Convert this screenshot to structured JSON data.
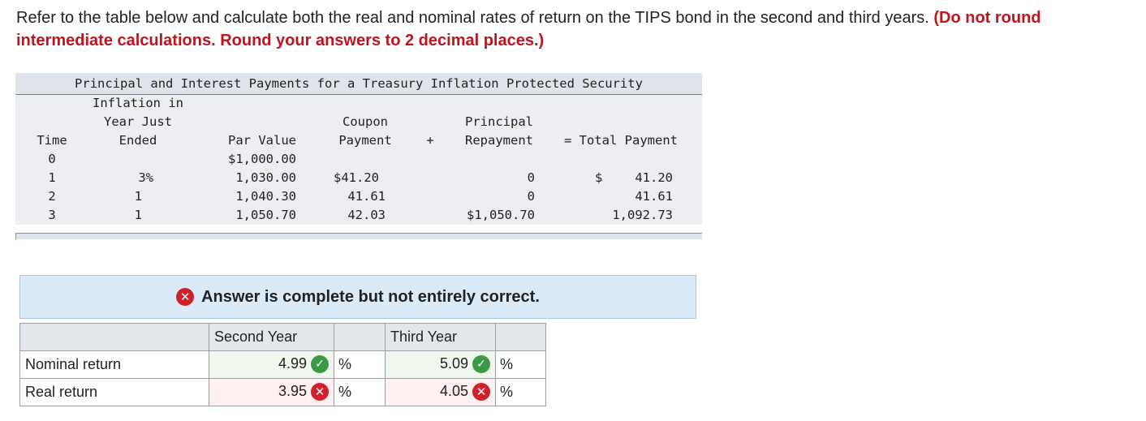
{
  "question": {
    "text": "Refer to the table below and calculate both the real and nominal rates of return on the TIPS bond in the second and third years.",
    "instruction": "(Do not round intermediate calculations. Round your answers to 2 decimal places.)"
  },
  "tips_table": {
    "title": "Principal and Interest Payments for a Treasury Inflation Protected Security",
    "headers": {
      "time": "Time",
      "inflation_1": "Inflation in",
      "inflation_2": "Year Just",
      "inflation_3": "Ended",
      "par": "Par Value",
      "coupon_1": "Coupon",
      "coupon_2": "Payment",
      "plus": "+",
      "principal_1": "Principal",
      "principal_2": "Repayment",
      "total": "= Total Payment"
    },
    "rows": [
      {
        "time": "0",
        "inflation": "",
        "par": "$1,000.00",
        "coupon": "",
        "principal": "",
        "total_sign": "",
        "total": ""
      },
      {
        "time": "1",
        "inflation": "3%",
        "par": "1,030.00",
        "coupon": "$41.20",
        "principal": "0",
        "total_sign": "$",
        "total": "41.20"
      },
      {
        "time": "2",
        "inflation": "1",
        "par": "1,040.30",
        "coupon": "41.61",
        "principal": "0",
        "total_sign": "",
        "total": "41.61"
      },
      {
        "time": "3",
        "inflation": "1",
        "par": "1,050.70",
        "coupon": "42.03",
        "principal": "$1,050.70",
        "total_sign": "",
        "total": "1,092.73"
      }
    ]
  },
  "banner": {
    "icon": "x-circle-icon",
    "text": "Answer is complete but not entirely correct."
  },
  "answer_table": {
    "col_second": "Second Year",
    "col_third": "Third Year",
    "rows": [
      {
        "label": "Nominal return",
        "second": "4.99",
        "second_status": "correct",
        "third": "5.09",
        "third_status": "correct",
        "unit": "%"
      },
      {
        "label": "Real return",
        "second": "3.95",
        "second_status": "incorrect",
        "third": "4.05",
        "third_status": "incorrect",
        "unit": "%"
      }
    ]
  },
  "colors": {
    "correct": "#3c9a45",
    "incorrect": "#d0202b",
    "emphasis": "#c0141d"
  }
}
